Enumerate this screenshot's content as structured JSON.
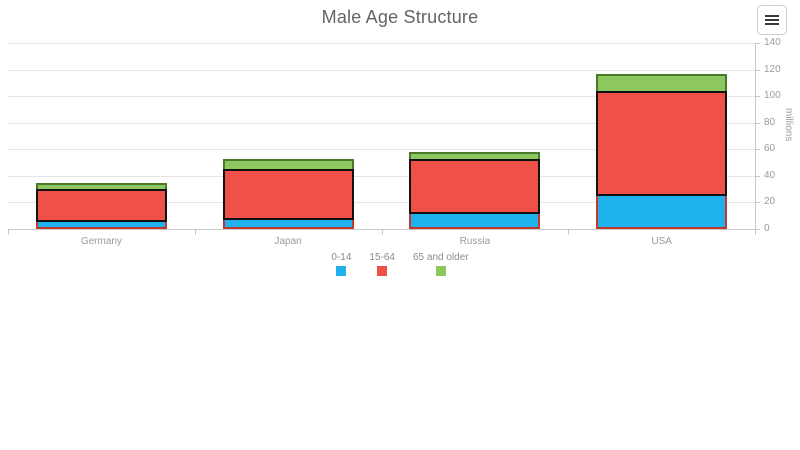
{
  "toolbar": {
    "menu_icon": "hamburger-icon"
  },
  "colors": {
    "grid": "#e5e5e5",
    "axis": "#c8c8c8",
    "axis_text": "#9b9b9b",
    "title_text": "#646464",
    "blue": "#1FB1EC",
    "red": "#EF5148",
    "green": "#8CC75F"
  },
  "chart_data": {
    "type": "bar",
    "stacked": true,
    "title": "Male Age Structure",
    "ylabel": "millions",
    "xlabel": "",
    "ylim": [
      0,
      140
    ],
    "ytick_step": 20,
    "grid": true,
    "legend_position": "bottom",
    "value_axis_side": "right",
    "categories": [
      "Germany",
      "Japan",
      "Russia",
      "USA"
    ],
    "series": [
      {
        "name": "0-14",
        "values": [
          5,
          7,
          11,
          25
        ],
        "color": "#1FB1EC",
        "border_color": "#C0392B"
      },
      {
        "name": "15-64",
        "values": [
          25,
          38,
          42,
          79
        ],
        "color": "#EF5148",
        "border_color": "#111111"
      },
      {
        "name": "65 and older",
        "values": [
          5,
          8,
          5,
          13
        ],
        "color": "#8CC75F",
        "border_color": "#4A7A28"
      }
    ]
  }
}
